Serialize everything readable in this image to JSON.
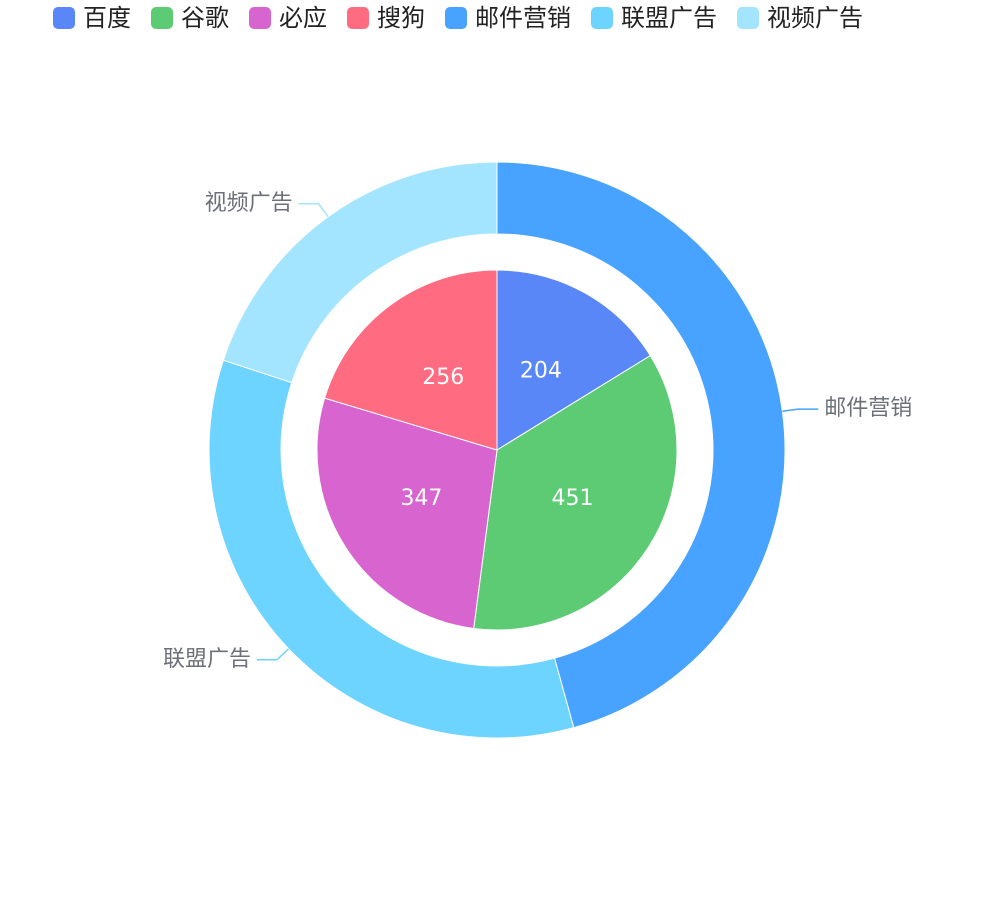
{
  "chart_data": [
    {
      "type": "pie",
      "categories": [
        "百度",
        "谷歌",
        "必应",
        "搜狗"
      ],
      "values": [
        204,
        451,
        347,
        256
      ],
      "colors": [
        "#5a87f7",
        "#5ccb74",
        "#d764cf",
        "#ff6b81"
      ],
      "label_position": "inside"
    },
    {
      "type": "ring",
      "categories": [
        "邮件营销",
        "联盟广告",
        "视频广告"
      ],
      "values": [
        575,
        432,
        251
      ],
      "colors": [
        "#48a2ff",
        "#6dd3ff",
        "#a3e5ff"
      ],
      "label_position": "outside"
    }
  ]
}
